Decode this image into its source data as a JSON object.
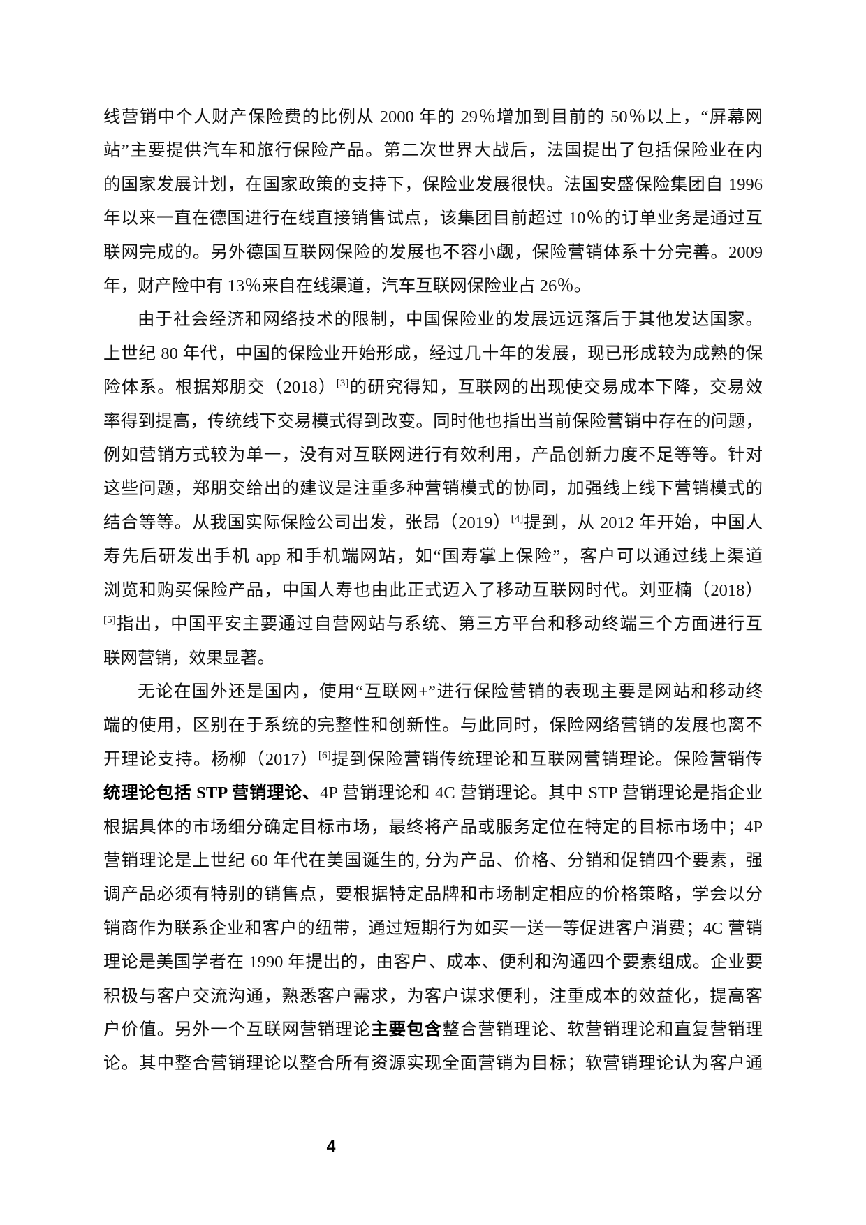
{
  "page": {
    "number": "4"
  },
  "colors": {
    "background": "#ffffff",
    "text": "#111111",
    "bold_text": "#000000"
  },
  "document": {
    "paragraphs": [
      {
        "lines": [
          {
            "segments": [
              {
                "text": "线营销中个人财产保险费的比例从 2000 年的 29％增加到目前的 50％以上，“屏幕网"
              }
            ]
          },
          {
            "segments": [
              {
                "text": "站”主要提供汽车和旅行保险产品。第二次世界大战后，法国提出了包括保险业在内"
              }
            ]
          },
          {
            "segments": [
              {
                "text": "的国家发展计划，在国家政策的支持下，保险业发展很快。法国安盛保险集团自 1996"
              }
            ]
          },
          {
            "segments": [
              {
                "text": "年以来一直在德国进行在线直接销售试点，该集团目前超过 10％的订单业务是通过互"
              }
            ]
          },
          {
            "segments": [
              {
                "text": "联网完成的。另外德国互联网保险的发展也不容小觑，保险营销体系十分完善。2009"
              }
            ]
          },
          {
            "end": true,
            "segments": [
              {
                "text": "年，财产险中有 13％来自在线渠道，汽车互联网保险业占 26％。"
              }
            ]
          }
        ]
      },
      {
        "lines": [
          {
            "indent": true,
            "segments": [
              {
                "text": "由于社会经济和网络技术的限制，中国保险业的发展远远落后于其他发达国家。"
              }
            ]
          },
          {
            "segments": [
              {
                "text": "上世纪 80 年代，中国的保险业开始形成，经过几十年的发展，现已形成较为成熟的保"
              }
            ]
          },
          {
            "segments": [
              {
                "text": "险体系。根据郑朋交（2018）"
              },
              {
                "text": "[3]",
                "sup": true
              },
              {
                "text": "的研究得知，互联网的出现使交易成本下降，交易效"
              }
            ]
          },
          {
            "segments": [
              {
                "text": "率得到提高，传统线下交易模式得到改变。同时他也指出当前保险营销中存在的问题，"
              }
            ]
          },
          {
            "segments": [
              {
                "text": "例如营销方式较为单一，没有对互联网进行有效利用，产品创新力度不足等等。针对"
              }
            ]
          },
          {
            "segments": [
              {
                "text": "这些问题，郑朋交给出的建议是注重多种营销模式的协同，加强线上线下营销模式的"
              }
            ]
          },
          {
            "segments": [
              {
                "text": "结合等等。从我国实际保险公司出发，张昂（2019）"
              },
              {
                "text": "[4]",
                "sup": true
              },
              {
                "text": "提到，从 2012 年开始，中国人"
              }
            ]
          },
          {
            "segments": [
              {
                "text": "寿先后研发出手机 app 和手机端网站，如“国寿掌上保险”，客户可以通过线上渠道"
              }
            ]
          },
          {
            "segments": [
              {
                "text": "浏览和购买保险产品，中国人寿也由此正式迈入了移动互联网时代。刘亚楠（2018）"
              }
            ]
          },
          {
            "segments": [
              {
                "text": "[5]",
                "sup": true
              },
              {
                "text": "指出，中国平安主要通过自营网站与系统、第三方平台和移动终端三个方面进行互"
              }
            ]
          },
          {
            "end": true,
            "segments": [
              {
                "text": "联网营销，效果显著。"
              }
            ]
          }
        ]
      },
      {
        "lines": [
          {
            "indent": true,
            "segments": [
              {
                "text": "无论在国外还是国内，使用“互联网+”进行保险营销的表现主要是网站和移动终"
              }
            ]
          },
          {
            "segments": [
              {
                "text": "端的使用，区别在于系统的完整性和创新性。与此同时，保险网络营销的发展也离不"
              }
            ]
          },
          {
            "segments": [
              {
                "text": "开理论支持。杨柳（2017）"
              },
              {
                "text": "[6]",
                "sup": true
              },
              {
                "text": "提到保险营销传统理论和互联网营销理论。保险营销传"
              }
            ]
          },
          {
            "segments": [
              {
                "text": "统理论包括 STP 营销理论、",
                "bold": true
              },
              {
                "text": "4P 营销理论和 4C 营销理论。其中 STP 营销理论是指企业"
              }
            ]
          },
          {
            "segments": [
              {
                "text": "根据具体的市场细分确定目标市场，最终将产品或服务定位在特定的目标市场中；4P"
              }
            ]
          },
          {
            "segments": [
              {
                "text": "营销理论是上世纪 60 年代在美国诞生的, 分为产品、价格、分销和促销四个要素，强"
              }
            ]
          },
          {
            "segments": [
              {
                "text": "调产品必须有特别的销售点，要根据特定品牌和市场制定相应的价格策略，学会以分"
              }
            ]
          },
          {
            "segments": [
              {
                "text": "销商作为联系企业和客户的纽带，通过短期行为如买一送一等促进客户消费；4C 营销"
              }
            ]
          },
          {
            "segments": [
              {
                "text": "理论是美国学者在 1990 年提出的，由客户、成本、便利和沟通四个要素组成。企业要"
              }
            ]
          },
          {
            "segments": [
              {
                "text": "积极与客户交流沟通，熟悉客户需求，为客户谋求便利，注重成本的效益化，提高客"
              }
            ]
          },
          {
            "segments": [
              {
                "text": "户价值。另外一个互联网营销理论"
              },
              {
                "text": "主要包含",
                "bold": true
              },
              {
                "text": "整合营销理论、软营销理论和直复营销理"
              }
            ]
          },
          {
            "segments": [
              {
                "text": "论。其中整合营销理论以整合所有资源实现全面营销为目标；软营销理论认为客户通"
              }
            ]
          }
        ]
      }
    ]
  }
}
